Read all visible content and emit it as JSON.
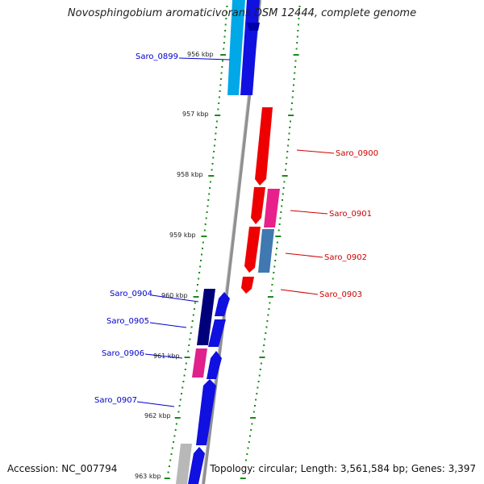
{
  "title": "Novosphingobium aromaticivorans DSM 12444, complete genome",
  "accession": "Accession: NC_007794",
  "stats": "Topology: circular; Length: 3,561,584 bp; Genes: 3,397",
  "colors": {
    "backbone": "#8c8c8c",
    "tick": "#1a8a1a",
    "minus_label": "#0000cc",
    "plus_label": "#cc0000"
  },
  "scale": [
    "956 kbp",
    "957 kbp",
    "958 kbp",
    "959 kbp",
    "960 kbp",
    "961 kbp",
    "962 kbp",
    "963 kbp"
  ],
  "genes_left": [
    {
      "name": "Saro_0899",
      "color": "#0000cc"
    },
    {
      "name": "Saro_0904",
      "color": "#0000cc"
    },
    {
      "name": "Saro_0905",
      "color": "#0000cc"
    },
    {
      "name": "Saro_0906",
      "color": "#0000cc"
    },
    {
      "name": "Saro_0907",
      "color": "#0000cc"
    }
  ],
  "genes_right": [
    {
      "name": "Saro_0900",
      "color": "#cc0000"
    },
    {
      "name": "Saro_0901",
      "color": "#cc0000"
    },
    {
      "name": "Saro_0902",
      "color": "#cc0000"
    },
    {
      "name": "Saro_0903",
      "color": "#cc0000"
    }
  ]
}
